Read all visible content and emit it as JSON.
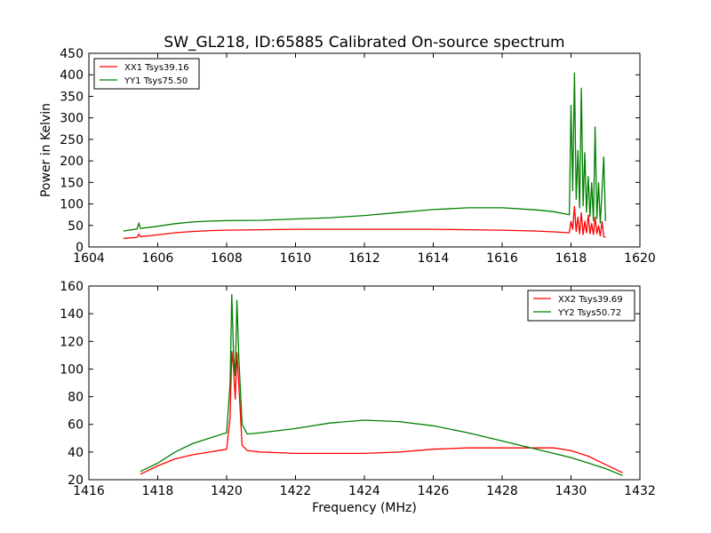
{
  "figure": {
    "title": "SW_GL218, ID:65885 Calibrated On-source spectrum"
  },
  "chart_data": [
    {
      "type": "line",
      "title": "SW_GL218, ID:65885 Calibrated On-source spectrum",
      "xlabel": "",
      "ylabel": "Power in Kelvin",
      "xlim": [
        1604,
        1620
      ],
      "ylim": [
        0,
        450
      ],
      "xticks": [
        1604,
        1606,
        1608,
        1610,
        1612,
        1614,
        1616,
        1618,
        1620
      ],
      "yticks": [
        0,
        50,
        100,
        150,
        200,
        250,
        300,
        350,
        400,
        450
      ],
      "grid": false,
      "legend_position": "top-left",
      "series": [
        {
          "name": "XX1 Tsys39.16",
          "color": "#ff0000",
          "points": [
            [
              1605.0,
              20
            ],
            [
              1605.4,
              22
            ],
            [
              1605.45,
              30
            ],
            [
              1605.5,
              24
            ],
            [
              1606.0,
              28
            ],
            [
              1606.5,
              33
            ],
            [
              1607.0,
              36
            ],
            [
              1607.5,
              38
            ],
            [
              1608.0,
              39
            ],
            [
              1609.0,
              40
            ],
            [
              1610.0,
              41
            ],
            [
              1611.0,
              41
            ],
            [
              1612.0,
              41
            ],
            [
              1613.0,
              41
            ],
            [
              1614.0,
              41
            ],
            [
              1615.0,
              40
            ],
            [
              1616.0,
              39
            ],
            [
              1617.0,
              37
            ],
            [
              1617.5,
              35
            ],
            [
              1617.95,
              33
            ],
            [
              1618.0,
              60
            ],
            [
              1618.05,
              40
            ],
            [
              1618.1,
              95
            ],
            [
              1618.15,
              35
            ],
            [
              1618.2,
              70
            ],
            [
              1618.25,
              30
            ],
            [
              1618.3,
              80
            ],
            [
              1618.35,
              28
            ],
            [
              1618.4,
              60
            ],
            [
              1618.45,
              32
            ],
            [
              1618.5,
              75
            ],
            [
              1618.55,
              30
            ],
            [
              1618.6,
              55
            ],
            [
              1618.65,
              28
            ],
            [
              1618.7,
              70
            ],
            [
              1618.75,
              30
            ],
            [
              1618.8,
              50
            ],
            [
              1618.85,
              25
            ],
            [
              1618.9,
              60
            ],
            [
              1618.95,
              24
            ],
            [
              1619.0,
              22
            ]
          ]
        },
        {
          "name": "YY1 Tsys75.50",
          "color": "#008000",
          "points": [
            [
              1605.0,
              37
            ],
            [
              1605.4,
              42
            ],
            [
              1605.45,
              55
            ],
            [
              1605.5,
              43
            ],
            [
              1606.0,
              48
            ],
            [
              1606.5,
              54
            ],
            [
              1607.0,
              58
            ],
            [
              1607.5,
              60
            ],
            [
              1608.0,
              61
            ],
            [
              1609.0,
              62
            ],
            [
              1610.0,
              65
            ],
            [
              1611.0,
              68
            ],
            [
              1612.0,
              73
            ],
            [
              1613.0,
              80
            ],
            [
              1614.0,
              87
            ],
            [
              1615.0,
              91
            ],
            [
              1616.0,
              91
            ],
            [
              1617.0,
              86
            ],
            [
              1617.5,
              82
            ],
            [
              1617.95,
              75
            ],
            [
              1618.0,
              330
            ],
            [
              1618.05,
              130
            ],
            [
              1618.1,
              405
            ],
            [
              1618.15,
              110
            ],
            [
              1618.2,
              225
            ],
            [
              1618.25,
              90
            ],
            [
              1618.3,
              370
            ],
            [
              1618.35,
              95
            ],
            [
              1618.4,
              220
            ],
            [
              1618.45,
              80
            ],
            [
              1618.5,
              165
            ],
            [
              1618.55,
              70
            ],
            [
              1618.6,
              150
            ],
            [
              1618.65,
              60
            ],
            [
              1618.7,
              280
            ],
            [
              1618.75,
              65
            ],
            [
              1618.8,
              150
            ],
            [
              1618.85,
              55
            ],
            [
              1618.9,
              130
            ],
            [
              1618.95,
              210
            ],
            [
              1619.0,
              60
            ]
          ]
        }
      ]
    },
    {
      "type": "line",
      "title": "",
      "xlabel": "Frequency (MHz)",
      "ylabel": "",
      "xlim": [
        1416,
        1432
      ],
      "ylim": [
        20,
        160
      ],
      "xticks": [
        1416,
        1418,
        1420,
        1422,
        1424,
        1426,
        1428,
        1430,
        1432
      ],
      "yticks": [
        20,
        40,
        60,
        80,
        100,
        120,
        140,
        160
      ],
      "grid": false,
      "legend_position": "top-right",
      "series": [
        {
          "name": "XX2 Tsys39.69",
          "color": "#ff0000",
          "points": [
            [
              1417.5,
              24
            ],
            [
              1418.0,
              30
            ],
            [
              1418.5,
              35
            ],
            [
              1419.0,
              38
            ],
            [
              1419.5,
              40
            ],
            [
              1420.0,
              42
            ],
            [
              1420.1,
              65
            ],
            [
              1420.15,
              113
            ],
            [
              1420.2,
              100
            ],
            [
              1420.25,
              78
            ],
            [
              1420.3,
              112
            ],
            [
              1420.35,
              90
            ],
            [
              1420.45,
              45
            ],
            [
              1420.6,
              41
            ],
            [
              1421.0,
              40
            ],
            [
              1422.0,
              39
            ],
            [
              1423.0,
              39
            ],
            [
              1424.0,
              39
            ],
            [
              1425.0,
              40
            ],
            [
              1426.0,
              42
            ],
            [
              1427.0,
              43
            ],
            [
              1428.0,
              43
            ],
            [
              1429.0,
              43
            ],
            [
              1429.5,
              43
            ],
            [
              1430.0,
              41
            ],
            [
              1430.5,
              37
            ],
            [
              1431.0,
              31
            ],
            [
              1431.5,
              25
            ]
          ]
        },
        {
          "name": "YY2 Tsys50.72",
          "color": "#008000",
          "points": [
            [
              1417.5,
              26
            ],
            [
              1418.0,
              32
            ],
            [
              1418.5,
              40
            ],
            [
              1419.0,
              46
            ],
            [
              1419.5,
              50
            ],
            [
              1420.0,
              54
            ],
            [
              1420.1,
              90
            ],
            [
              1420.15,
              154
            ],
            [
              1420.2,
              110
            ],
            [
              1420.25,
              95
            ],
            [
              1420.3,
              150
            ],
            [
              1420.35,
              110
            ],
            [
              1420.45,
              60
            ],
            [
              1420.6,
              53
            ],
            [
              1421.0,
              54
            ],
            [
              1422.0,
              57
            ],
            [
              1423.0,
              61
            ],
            [
              1424.0,
              63
            ],
            [
              1425.0,
              62
            ],
            [
              1426.0,
              59
            ],
            [
              1427.0,
              54
            ],
            [
              1428.0,
              48
            ],
            [
              1429.0,
              42
            ],
            [
              1429.5,
              39
            ],
            [
              1430.0,
              36
            ],
            [
              1430.5,
              32
            ],
            [
              1431.0,
              28
            ],
            [
              1431.5,
              23
            ]
          ]
        }
      ]
    }
  ]
}
